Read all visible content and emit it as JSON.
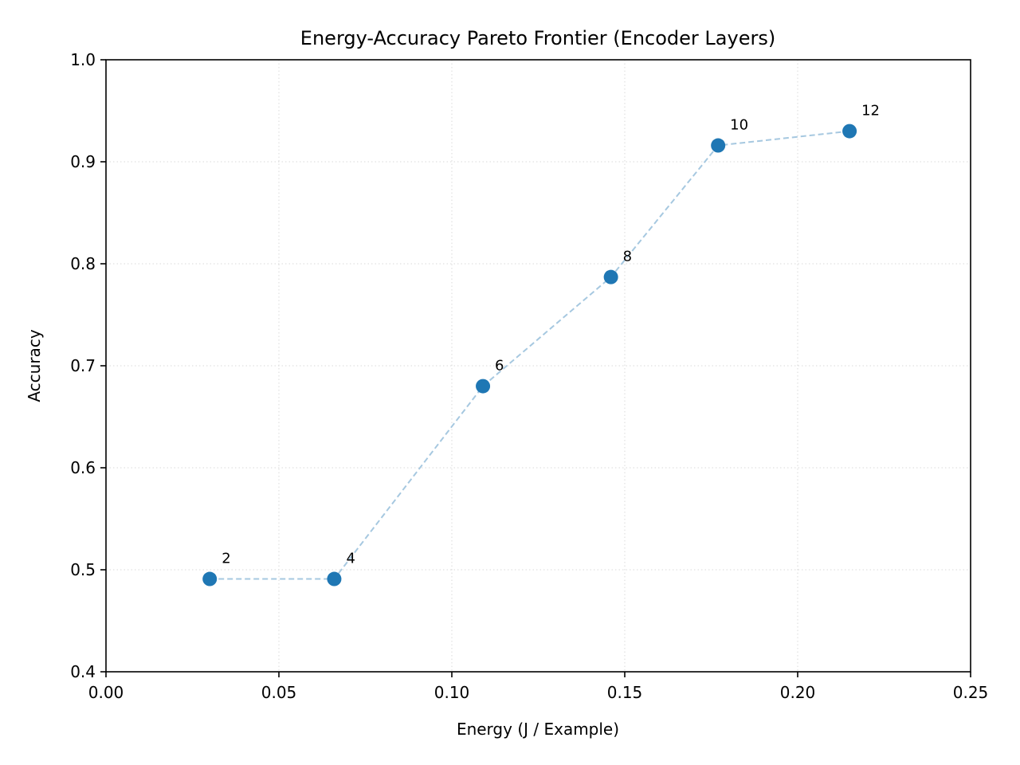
{
  "chart_data": {
    "type": "line",
    "title": "Energy-Accuracy Pareto Frontier (Encoder Layers)",
    "xlabel": "Energy (J / Example)",
    "ylabel": "Accuracy",
    "xlim": [
      0.0,
      0.25
    ],
    "ylim": [
      0.4,
      1.0
    ],
    "x_ticks": [
      "0.00",
      "0.05",
      "0.10",
      "0.15",
      "0.20",
      "0.25"
    ],
    "y_ticks": [
      "0.4",
      "0.5",
      "0.6",
      "0.7",
      "0.8",
      "0.9",
      "1.0"
    ],
    "grid": true,
    "legend": null,
    "series": [
      {
        "name": "Encoder Layers",
        "marker_color": "#1f77b4",
        "line_color": "#a6c8e0",
        "line_style": "dashed",
        "points": [
          {
            "layers": "2",
            "x": 0.03,
            "y": 0.491
          },
          {
            "layers": "4",
            "x": 0.066,
            "y": 0.491
          },
          {
            "layers": "6",
            "x": 0.109,
            "y": 0.68
          },
          {
            "layers": "8",
            "x": 0.146,
            "y": 0.787
          },
          {
            "layers": "10",
            "x": 0.177,
            "y": 0.916
          },
          {
            "layers": "12",
            "x": 0.215,
            "y": 0.93
          }
        ]
      }
    ]
  }
}
